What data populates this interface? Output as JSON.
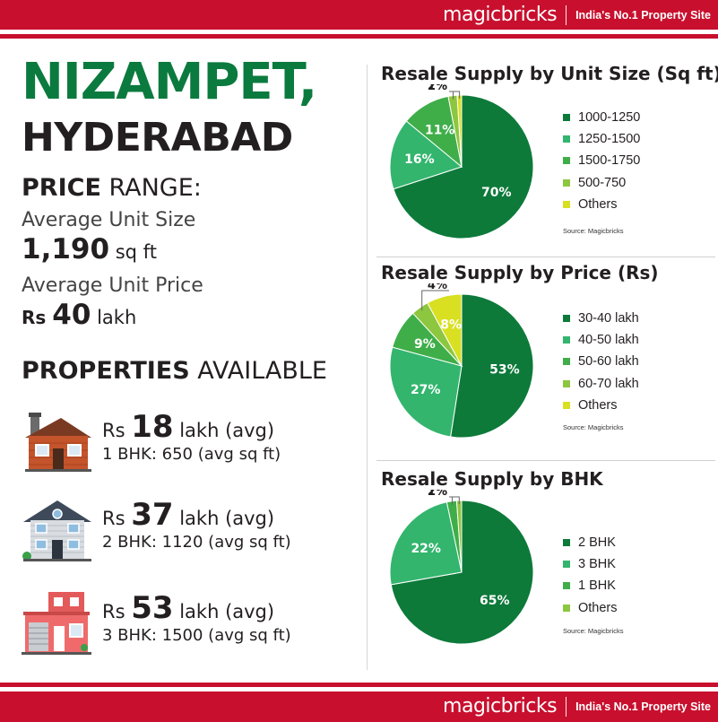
{
  "brand": {
    "name": "magicbricks",
    "tagline": "India's No.1 Property Site"
  },
  "location": {
    "city": "NIZAMPET,",
    "state": "HYDERABAD"
  },
  "price_range": {
    "heading_bold": "PRICE",
    "heading_rest": " RANGE:",
    "avg_size_label": "Average Unit Size",
    "avg_size_value": "1,190",
    "avg_size_unit": " sq ft",
    "avg_price_label": "Average Unit Price",
    "avg_price_prefix": "Rs ",
    "avg_price_value": "40",
    "avg_price_unit": " lakh"
  },
  "properties": {
    "heading_bold": "PROPERTIES",
    "heading_rest": " AVAILABLE",
    "items": [
      {
        "prefix": "Rs ",
        "price": "18",
        "suffix": " lakh (avg)",
        "detail": "1 BHK: 650 (avg sq ft)"
      },
      {
        "prefix": "Rs ",
        "price": "37",
        "suffix": " lakh (avg)",
        "detail": "2 BHK: 1120 (avg sq ft)"
      },
      {
        "prefix": "Rs ",
        "price": "53",
        "suffix": " lakh (avg)",
        "detail": "3 BHK: 1500 (avg sq ft)"
      }
    ]
  },
  "colors": {
    "brand_red": "#c8102e",
    "title_green": "#0b7a3e",
    "series": [
      "#0d7a3a",
      "#33b56d",
      "#3fae49",
      "#8dc63f",
      "#d8e021"
    ]
  },
  "chart_data": [
    {
      "type": "pie",
      "title": "Resale Supply by Unit Size (Sq ft)",
      "source": "Source: Magicbricks",
      "categories": [
        "1000-1250",
        "1250-1500",
        "1500-1750",
        "500-750",
        "Others"
      ],
      "values": [
        70,
        16,
        11,
        2,
        1
      ],
      "labels": [
        "70%",
        "16%",
        "11%",
        "2%",
        "1%"
      ],
      "legend_position": "right"
    },
    {
      "type": "pie",
      "title": "Resale Supply by Price (Rs)",
      "source": "Source: Magicbricks",
      "categories": [
        "30-40 lakh",
        "40-50 lakh",
        "50-60 lakh",
        "60-70 lakh",
        "Others"
      ],
      "values": [
        53,
        27,
        9,
        4,
        8
      ],
      "labels": [
        "53%",
        "27%",
        "9%",
        "4%",
        "8%"
      ],
      "legend_position": "right"
    },
    {
      "type": "pie",
      "title": "Resale Supply by BHK",
      "source": "Source: Magicbricks",
      "categories": [
        "2 BHK",
        "3 BHK",
        "1 BHK",
        "Others"
      ],
      "values": [
        65,
        22,
        2,
        1
      ],
      "labels": [
        "65%",
        "22%",
        "2%",
        "1%"
      ],
      "legend_position": "right"
    }
  ]
}
